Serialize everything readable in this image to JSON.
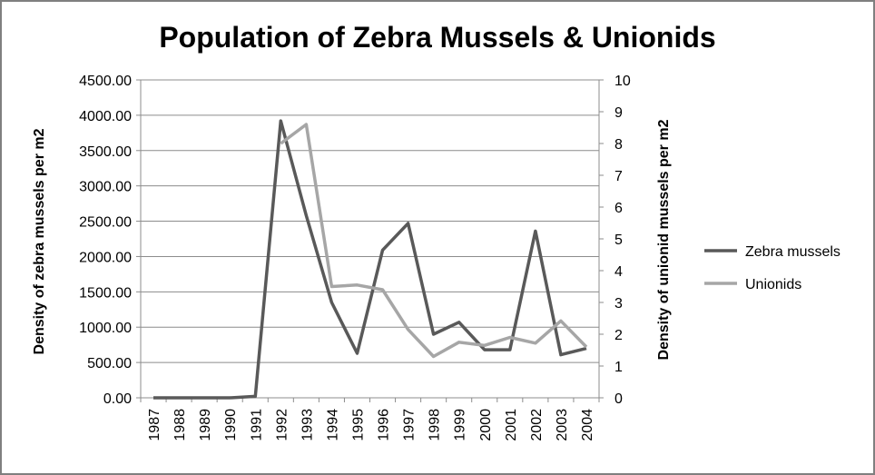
{
  "chart_data": {
    "type": "line",
    "title": "Population of Zebra Mussels & Unionids",
    "ylabel_left": "Density of zebra mussels per m2",
    "ylabel_right": "Density of unionid mussels per m2",
    "xlabel": "",
    "x": [
      "1987",
      "1988",
      "1989",
      "1990",
      "1991",
      "1992",
      "1993",
      "1994",
      "1995",
      "1996",
      "1997",
      "1998",
      "1999",
      "2000",
      "2001",
      "2002",
      "2003",
      "2004"
    ],
    "y_left": {
      "ylim": [
        0,
        4500
      ],
      "ticks": [
        0,
        500,
        1000,
        1500,
        2000,
        2500,
        3000,
        3500,
        4000,
        4500
      ],
      "tick_labels": [
        "0.00",
        "500.00",
        "1000.00",
        "1500.00",
        "2000.00",
        "2500.00",
        "3000.00",
        "3500.00",
        "4000.00",
        "4500.00"
      ]
    },
    "y_right": {
      "ylim": [
        0,
        10
      ],
      "ticks": [
        0,
        1,
        2,
        3,
        4,
        5,
        6,
        7,
        8,
        9,
        10
      ],
      "tick_labels": [
        "0",
        "1",
        "2",
        "3",
        "4",
        "5",
        "6",
        "7",
        "8",
        "9",
        "10"
      ]
    },
    "series": [
      {
        "name": "Zebra mussels",
        "axis": "left",
        "color": "#595959",
        "values": [
          0,
          0,
          0,
          0,
          20,
          3920,
          2580,
          1350,
          630,
          2090,
          2470,
          900,
          1070,
          680,
          680,
          2360,
          610,
          700
        ]
      },
      {
        "name": "Unionids",
        "axis": "right",
        "color": "#a6a6a6",
        "start_index": 5,
        "values": [
          null,
          null,
          null,
          null,
          null,
          8.0,
          8.6,
          3.5,
          3.55,
          3.4,
          2.15,
          1.3,
          1.75,
          1.65,
          1.9,
          1.72,
          2.42,
          1.6
        ]
      }
    ],
    "grid": true,
    "legend": "right"
  }
}
